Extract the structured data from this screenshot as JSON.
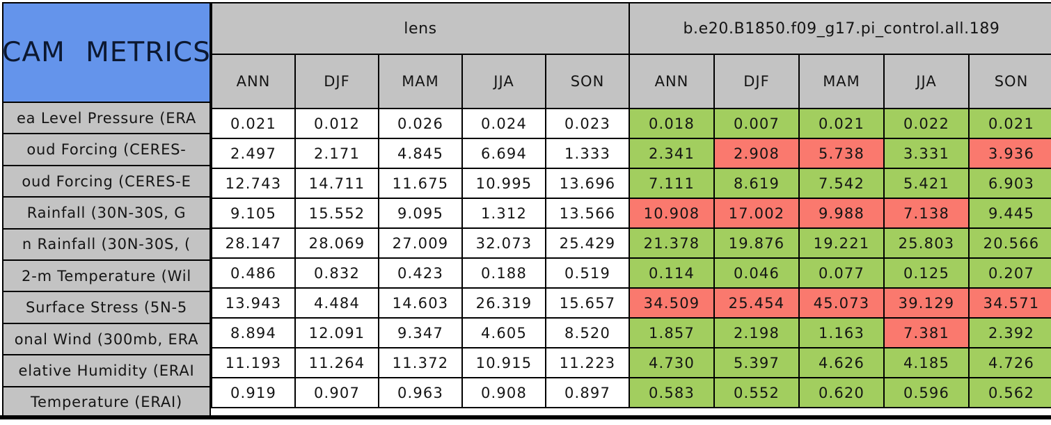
{
  "colors": {
    "header_blue": "#6494EB",
    "header_gray": "#C3C3C3",
    "better_green": "#A2CE5F",
    "worse_red": "#FA796E",
    "lens_cell_white": "#FFFFFF",
    "grid_line_black": "#000000"
  },
  "chart_data": {
    "type": "table",
    "title": "CAM METRICS",
    "column_groups": [
      "lens",
      "b.e20.B1850.f09_g17.pi_control.all.189"
    ],
    "season_columns": [
      "ANN",
      "DJF",
      "MAM",
      "JJA",
      "SON"
    ],
    "legend_note_colors": {
      "better_than_lens": "green",
      "worse_than_lens": "red"
    },
    "rows": [
      {
        "label": "ea Level Pressure (ERA",
        "lens_values": [
          "0.021",
          "0.012",
          "0.026",
          "0.024",
          "0.023"
        ],
        "control_values": [
          "0.018",
          "0.007",
          "0.021",
          "0.022",
          "0.021"
        ],
        "control_status": [
          "better",
          "better",
          "better",
          "better",
          "better"
        ]
      },
      {
        "label": "oud Forcing (CERES-",
        "lens_values": [
          "2.497",
          "2.171",
          "4.845",
          "6.694",
          "1.333"
        ],
        "control_values": [
          "2.341",
          "2.908",
          "5.738",
          "3.331",
          "3.936"
        ],
        "control_status": [
          "better",
          "worse",
          "worse",
          "better",
          "worse"
        ]
      },
      {
        "label": "oud Forcing (CERES-E",
        "lens_values": [
          "12.743",
          "14.711",
          "11.675",
          "10.995",
          "13.696"
        ],
        "control_values": [
          "7.111",
          "8.619",
          "7.542",
          "5.421",
          "6.903"
        ],
        "control_status": [
          "better",
          "better",
          "better",
          "better",
          "better"
        ]
      },
      {
        "label": "Rainfall (30N-30S, G",
        "lens_values": [
          "9.105",
          "15.552",
          "9.095",
          "1.312",
          "13.566"
        ],
        "control_values": [
          "10.908",
          "17.002",
          "9.988",
          "7.138",
          "9.445"
        ],
        "control_status": [
          "worse",
          "worse",
          "worse",
          "worse",
          "better"
        ]
      },
      {
        "label": "n Rainfall (30N-30S, (",
        "lens_values": [
          "28.147",
          "28.069",
          "27.009",
          "32.073",
          "25.429"
        ],
        "control_values": [
          "21.378",
          "19.876",
          "19.221",
          "25.803",
          "20.566"
        ],
        "control_status": [
          "better",
          "better",
          "better",
          "better",
          "better"
        ]
      },
      {
        "label": "2-m Temperature (Wil",
        "lens_values": [
          "0.486",
          "0.832",
          "0.423",
          "0.188",
          "0.519"
        ],
        "control_values": [
          "0.114",
          "0.046",
          "0.077",
          "0.125",
          "0.207"
        ],
        "control_status": [
          "better",
          "better",
          "better",
          "better",
          "better"
        ]
      },
      {
        "label": "Surface Stress (5N-5",
        "lens_values": [
          "13.943",
          "4.484",
          "14.603",
          "26.319",
          "15.657"
        ],
        "control_values": [
          "34.509",
          "25.454",
          "45.073",
          "39.129",
          "34.571"
        ],
        "control_status": [
          "worse",
          "worse",
          "worse",
          "worse",
          "worse"
        ]
      },
      {
        "label": "onal Wind (300mb, ERA",
        "lens_values": [
          "8.894",
          "12.091",
          "9.347",
          "4.605",
          "8.520"
        ],
        "control_values": [
          "1.857",
          "2.198",
          "1.163",
          "7.381",
          "2.392"
        ],
        "control_status": [
          "better",
          "better",
          "better",
          "worse",
          "better"
        ]
      },
      {
        "label": "elative Humidity (ERAI",
        "lens_values": [
          "11.193",
          "11.264",
          "11.372",
          "10.915",
          "11.223"
        ],
        "control_values": [
          "4.730",
          "5.397",
          "4.626",
          "4.185",
          "4.726"
        ],
        "control_status": [
          "better",
          "better",
          "better",
          "better",
          "better"
        ]
      },
      {
        "label": "Temperature (ERAI)",
        "lens_values": [
          "0.919",
          "0.907",
          "0.963",
          "0.908",
          "0.897"
        ],
        "control_values": [
          "0.583",
          "0.552",
          "0.620",
          "0.596",
          "0.562"
        ],
        "control_status": [
          "better",
          "better",
          "better",
          "better",
          "better"
        ]
      }
    ]
  }
}
